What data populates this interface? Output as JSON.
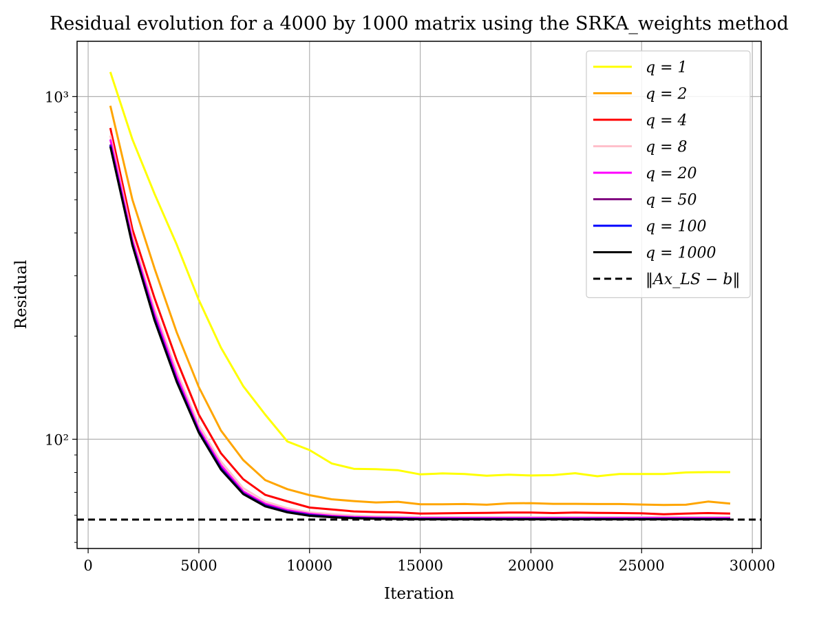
{
  "chart_data": {
    "type": "line",
    "title": "Residual evolution for a 4000 by 1000 matrix using the SRKA_weights method",
    "xlabel": "Iteration",
    "ylabel": "Residual",
    "xlim": [
      -500,
      30400
    ],
    "ylim": [
      48,
      1450
    ],
    "yscale": "log",
    "grid": true,
    "legend_position": "top-right",
    "x_ticks": [
      0,
      5000,
      10000,
      15000,
      20000,
      25000,
      30000
    ],
    "x_tick_labels": [
      "0",
      "5000",
      "10000",
      "15000",
      "20000",
      "25000",
      "30000"
    ],
    "y_ticks": [
      100,
      1000
    ],
    "y_tick_labels": [
      "10²",
      "10³"
    ],
    "x": [
      1000,
      2000,
      3000,
      4000,
      5000,
      6000,
      7000,
      8000,
      9000,
      10000,
      11000,
      12000,
      13000,
      14000,
      15000,
      16000,
      17000,
      18000,
      19000,
      20000,
      21000,
      22000,
      23000,
      24000,
      25000,
      26000,
      27000,
      28000,
      29000
    ],
    "series": [
      {
        "name": "q = 1",
        "color": "#ffff00",
        "style": "solid",
        "values": [
          1180,
          750,
          520,
          370,
          255,
          185,
          143,
          118,
          98.5,
          93,
          85,
          82,
          81.8,
          81.2,
          79,
          79.5,
          79.2,
          78.3,
          78.8,
          78.4,
          78.6,
          79.6,
          78,
          79.2,
          79.2,
          79.2,
          80,
          80.2,
          80.2
        ]
      },
      {
        "name": "q = 2",
        "color": "#ffa500",
        "style": "solid",
        "values": [
          940,
          500,
          315,
          205,
          142,
          106,
          87,
          76,
          71.5,
          68.7,
          66.8,
          66,
          65.4,
          65.7,
          64.6,
          64.6,
          64.7,
          64.4,
          65,
          65.1,
          64.8,
          64.8,
          64.7,
          64.7,
          64.5,
          64.3,
          64.4,
          65.8,
          64.9
        ]
      },
      {
        "name": "q = 4",
        "color": "#ff0000",
        "style": "solid",
        "values": [
          810,
          410,
          258,
          170,
          118,
          91,
          76.5,
          68.8,
          65.9,
          63.2,
          62.4,
          61.6,
          61.3,
          61.2,
          60.7,
          60.8,
          60.9,
          61,
          61.1,
          61.1,
          60.9,
          61.1,
          61,
          60.9,
          60.8,
          60.4,
          60.7,
          60.9,
          60.7
        ]
      },
      {
        "name": "q = 8",
        "color": "#ffc0cb",
        "style": "solid",
        "values": [
          770,
          390,
          240,
          158,
          110,
          86,
          72,
          65.8,
          62.9,
          61.2,
          60.5,
          59.9,
          59.6,
          59.5,
          59.3,
          59.3,
          59.3,
          59.3,
          59.3,
          59.3,
          59.3,
          59.3,
          59.3,
          59.3,
          59.3,
          59.3,
          59.3,
          59.3,
          59.3
        ]
      },
      {
        "name": "q = 20",
        "color": "#ff00ff",
        "style": "solid",
        "values": [
          750,
          380,
          232,
          153,
          107,
          84,
          70.5,
          64.8,
          62.1,
          60.6,
          59.8,
          59.3,
          59.1,
          59,
          58.9,
          58.9,
          58.9,
          58.9,
          58.9,
          58.9,
          58.9,
          58.9,
          58.9,
          58.9,
          58.9,
          58.9,
          58.9,
          58.9,
          58.9
        ]
      },
      {
        "name": "q = 50",
        "color": "#800080",
        "style": "solid",
        "values": [
          725,
          372,
          226,
          149,
          105.5,
          82.5,
          69.7,
          64.2,
          61.6,
          60.2,
          59.5,
          59,
          58.8,
          58.7,
          58.6,
          58.6,
          58.6,
          58.6,
          58.6,
          58.6,
          58.6,
          58.6,
          58.6,
          58.6,
          58.6,
          58.6,
          58.6,
          58.6,
          58.6
        ]
      },
      {
        "name": "q = 100",
        "color": "#0000ff",
        "style": "solid",
        "values": [
          720,
          370,
          224,
          148,
          105,
          82,
          69.4,
          63.9,
          61.4,
          60,
          59.3,
          58.9,
          58.7,
          58.6,
          58.5,
          58.5,
          58.5,
          58.5,
          58.5,
          58.5,
          58.5,
          58.5,
          58.5,
          58.5,
          58.5,
          58.5,
          58.5,
          58.5,
          58.5
        ]
      },
      {
        "name": "q = 1000",
        "color": "#000000",
        "style": "solid",
        "values": [
          715,
          368,
          222,
          147,
          104.5,
          81.5,
          69.2,
          63.7,
          61.2,
          59.8,
          59.2,
          58.8,
          58.6,
          58.5,
          58.4,
          58.4,
          58.4,
          58.4,
          58.4,
          58.4,
          58.4,
          58.4,
          58.4,
          58.4,
          58.4,
          58.4,
          58.4,
          58.4,
          58.4
        ]
      }
    ],
    "reference_line": {
      "name": "‖Ax_LS − b‖",
      "value": 58.3,
      "color": "#000000",
      "style": "dashed"
    }
  }
}
